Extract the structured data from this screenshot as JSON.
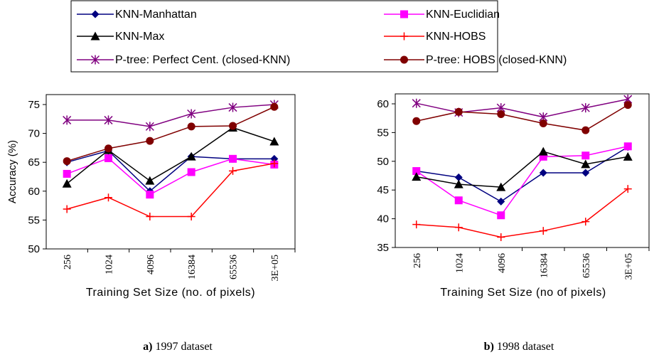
{
  "chart_data": [
    {
      "type": "line",
      "categories": [
        "256",
        "1024",
        "4096",
        "16384",
        "65536",
        "3E+05"
      ],
      "ylabel": "Accuracy (%)",
      "xlabel": "Training Set Size (no. of pixels)",
      "caption": {
        "label": "a)",
        "text": "1997 dataset"
      },
      "ylim": [
        50,
        75
      ],
      "yticks": [
        50,
        55,
        60,
        65,
        70,
        75
      ],
      "series": [
        {
          "name": "KNN-Manhattan",
          "color": "#000080",
          "marker": "diamond",
          "values": [
            65,
            67,
            60,
            66,
            65.6,
            65.6
          ]
        },
        {
          "name": "KNN-Euclidian",
          "color": "#ff00ff",
          "marker": "square",
          "values": [
            63,
            65.7,
            59.4,
            63.3,
            65.6,
            64.6
          ]
        },
        {
          "name": "KNN-Max",
          "color": "#000000",
          "marker": "triangle",
          "values": [
            61.3,
            67.1,
            61.8,
            66,
            71,
            68.6
          ]
        },
        {
          "name": "KNN-HOBS",
          "color": "#ff0000",
          "marker": "plus",
          "values": [
            56.9,
            58.9,
            55.6,
            55.6,
            63.5,
            64.8
          ]
        },
        {
          "name": "P-tree: Perfect Cent. (closed-KNN)",
          "color": "#800080",
          "marker": "star",
          "values": [
            72.3,
            72.3,
            71.2,
            73.4,
            74.5,
            75
          ]
        },
        {
          "name": "P-tree: HOBS (closed-KNN)",
          "color": "#800000",
          "marker": "circle",
          "values": [
            65.2,
            67.4,
            68.7,
            71.2,
            71.3,
            74.6
          ]
        }
      ]
    },
    {
      "type": "line",
      "categories": [
        "256",
        "1024",
        "4096",
        "16384",
        "65536",
        "3E+05"
      ],
      "xlabel": "Training Set Size (no of pixels)",
      "caption": {
        "label": "b)",
        "text": "1998 dataset"
      },
      "ylim": [
        35,
        60
      ],
      "yticks": [
        35,
        40,
        45,
        50,
        55,
        60
      ],
      "series": [
        {
          "color": "#000080",
          "marker": "diamond",
          "values": [
            48.3,
            47.2,
            43,
            48,
            48,
            52.5
          ]
        },
        {
          "color": "#ff00ff",
          "marker": "square",
          "values": [
            48.3,
            43.2,
            40.6,
            50.8,
            51,
            52.6
          ]
        },
        {
          "color": "#000000",
          "marker": "triangle",
          "values": [
            47.3,
            46,
            45.5,
            51.7,
            49.5,
            50.8
          ]
        },
        {
          "color": "#ff0000",
          "marker": "plus",
          "values": [
            39,
            38.5,
            36.8,
            37.9,
            39.5,
            45.2
          ]
        },
        {
          "color": "#800080",
          "marker": "star",
          "values": [
            60.1,
            58.5,
            59.3,
            57.7,
            59.3,
            60.8
          ]
        },
        {
          "color": "#800000",
          "marker": "circle",
          "values": [
            57,
            58.6,
            58.2,
            56.6,
            55.4,
            59.8
          ]
        }
      ]
    }
  ]
}
